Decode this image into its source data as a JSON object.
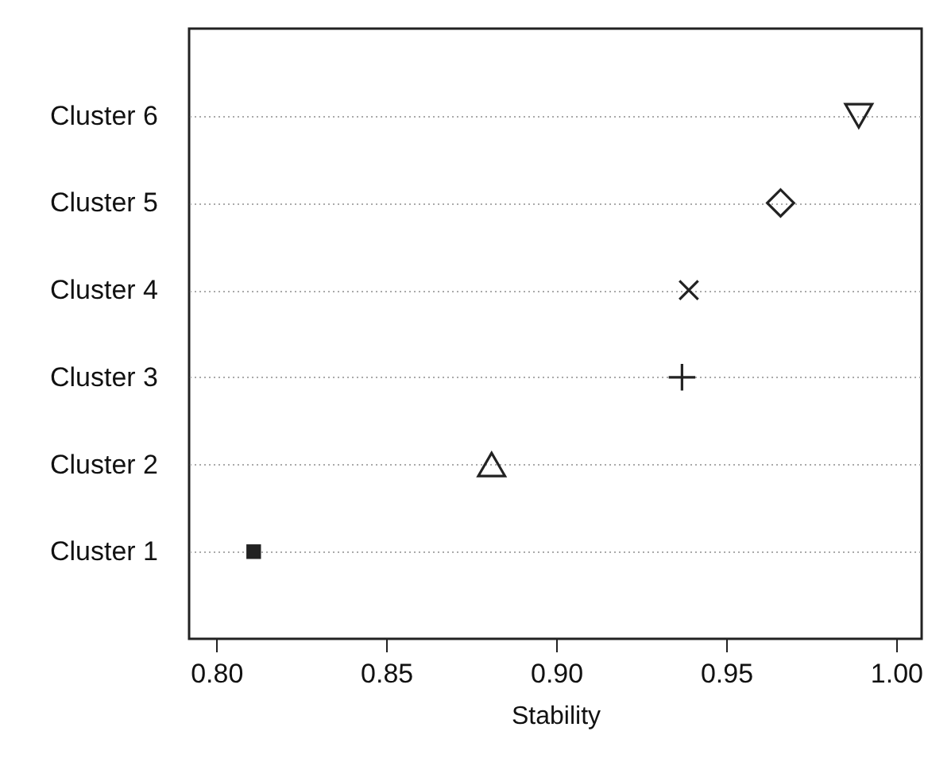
{
  "chart_data": {
    "type": "scatter",
    "orientation": "horizontal",
    "xlabel": "Stability",
    "categories": [
      "Cluster 6",
      "Cluster 5",
      "Cluster 4",
      "Cluster 3",
      "Cluster 2",
      "Cluster 1"
    ],
    "series": [
      {
        "color": "#222222",
        "marker": "triangle-down",
        "values": [
          0.989,
          null,
          null,
          null,
          null,
          null
        ]
      },
      {
        "color": "#222222",
        "marker": "diamond",
        "values": [
          null,
          0.966,
          null,
          null,
          null,
          null
        ]
      },
      {
        "color": "#222222",
        "marker": "x",
        "values": [
          null,
          null,
          0.939,
          null,
          null,
          null
        ]
      },
      {
        "color": "#222222",
        "marker": "cross",
        "values": [
          null,
          null,
          null,
          0.937,
          null,
          null
        ]
      },
      {
        "color": "#222222",
        "marker": "triangle",
        "values": [
          null,
          null,
          null,
          null,
          0.881,
          null
        ]
      },
      {
        "color": "#222222",
        "marker": "square",
        "values": [
          null,
          null,
          null,
          null,
          null,
          0.811
        ]
      }
    ],
    "xlim": [
      0.792,
      1.0075
    ],
    "xticks": [
      {
        "value": 0.8,
        "label": "0.80"
      },
      {
        "value": 0.85,
        "label": "0.85"
      },
      {
        "value": 0.9,
        "label": "0.90"
      },
      {
        "value": 0.95,
        "label": "0.95"
      },
      {
        "value": 1.0,
        "label": "1.00"
      }
    ],
    "grid": "y",
    "line_style": "dotted"
  }
}
